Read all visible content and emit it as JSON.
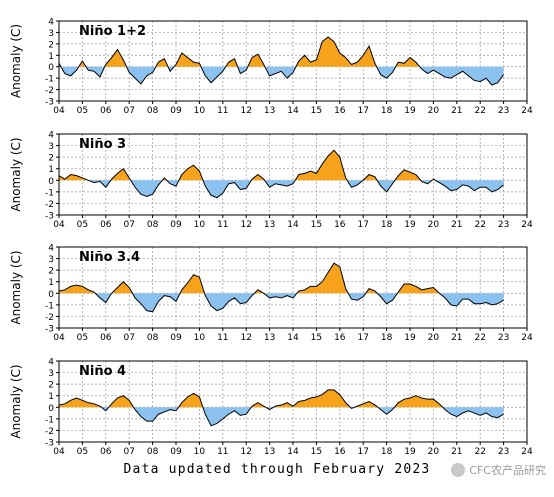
{
  "footer_text": "Data updated through February 2023",
  "watermark_text": "CFC农产品研究",
  "colors": {
    "positive": "#f7a21b",
    "negative": "#8cc2f0",
    "line": "#000000",
    "grid": "#9a9a9a"
  },
  "chart_data": [
    {
      "type": "area",
      "title": "Niño 1+2",
      "ylabel": "Anomaly (C)",
      "ylim": [
        -3,
        4
      ],
      "xlim": [
        2004,
        2024
      ],
      "yticks": [
        -3,
        -2,
        -1,
        0,
        1,
        2,
        3,
        4
      ],
      "xtick_labels": [
        "04",
        "05",
        "06",
        "07",
        "08",
        "09",
        "10",
        "11",
        "12",
        "13",
        "14",
        "15",
        "16",
        "17",
        "18",
        "19",
        "20",
        "21",
        "22",
        "23",
        "24"
      ],
      "grid": true,
      "series": [
        {
          "x": [
            2004.0,
            2004.25,
            2004.5,
            2004.75,
            2005.0,
            2005.25,
            2005.5,
            2005.75,
            2006.0,
            2006.25,
            2006.5,
            2006.75,
            2007.0,
            2007.25,
            2007.5,
            2007.75,
            2008.0,
            2008.25,
            2008.5,
            2008.75,
            2009.0,
            2009.25,
            2009.5,
            2009.75,
            2010.0,
            2010.25,
            2010.5,
            2010.75,
            2011.0,
            2011.25,
            2011.5,
            2011.75,
            2012.0,
            2012.25,
            2012.5,
            2012.75,
            2013.0,
            2013.25,
            2013.5,
            2013.75,
            2014.0,
            2014.25,
            2014.5,
            2014.75,
            2015.0,
            2015.25,
            2015.5,
            2015.75,
            2016.0,
            2016.25,
            2016.5,
            2016.75,
            2017.0,
            2017.25,
            2017.5,
            2017.75,
            2018.0,
            2018.25,
            2018.5,
            2018.75,
            2019.0,
            2019.25,
            2019.5,
            2019.75,
            2020.0,
            2020.25,
            2020.5,
            2020.75,
            2021.0,
            2021.25,
            2021.5,
            2021.75,
            2022.0,
            2022.25,
            2022.5,
            2022.75,
            2023.0
          ],
          "values": [
            0.3,
            -0.6,
            -0.8,
            -0.3,
            0.5,
            -0.3,
            -0.4,
            -0.9,
            0.2,
            0.8,
            1.5,
            0.6,
            -0.5,
            -1.0,
            -1.5,
            -0.8,
            -0.5,
            0.4,
            0.7,
            -0.4,
            0.2,
            1.2,
            0.8,
            0.4,
            0.3,
            -0.8,
            -1.4,
            -0.9,
            -0.4,
            0.4,
            0.7,
            -0.6,
            -0.3,
            0.8,
            1.1,
            0.2,
            -0.8,
            -0.6,
            -0.4,
            -1.0,
            -0.5,
            0.5,
            1.0,
            0.4,
            0.6,
            2.2,
            2.6,
            2.2,
            1.2,
            0.8,
            0.2,
            0.4,
            1.0,
            1.8,
            0.3,
            -0.7,
            -1.0,
            -0.5,
            0.4,
            0.3,
            0.8,
            0.4,
            -0.2,
            -0.6,
            -0.3,
            -0.6,
            -0.9,
            -1.0,
            -0.7,
            -0.4,
            -0.8,
            -1.2,
            -1.3,
            -1.0,
            -1.6,
            -1.4,
            -0.7
          ]
        }
      ]
    },
    {
      "type": "area",
      "title": "Niño 3",
      "ylabel": "Anomaly (C)",
      "ylim": [
        -3,
        4
      ],
      "xlim": [
        2004,
        2024
      ],
      "yticks": [
        -3,
        -2,
        -1,
        0,
        1,
        2,
        3,
        4
      ],
      "xtick_labels": [
        "04",
        "05",
        "06",
        "07",
        "08",
        "09",
        "10",
        "11",
        "12",
        "13",
        "14",
        "15",
        "16",
        "17",
        "18",
        "19",
        "20",
        "21",
        "22",
        "23",
        "24"
      ],
      "grid": true,
      "series": [
        {
          "x": [
            2004.0,
            2004.25,
            2004.5,
            2004.75,
            2005.0,
            2005.25,
            2005.5,
            2005.75,
            2006.0,
            2006.25,
            2006.5,
            2006.75,
            2007.0,
            2007.25,
            2007.5,
            2007.75,
            2008.0,
            2008.25,
            2008.5,
            2008.75,
            2009.0,
            2009.25,
            2009.5,
            2009.75,
            2010.0,
            2010.25,
            2010.5,
            2010.75,
            2011.0,
            2011.25,
            2011.5,
            2011.75,
            2012.0,
            2012.25,
            2012.5,
            2012.75,
            2013.0,
            2013.25,
            2013.5,
            2013.75,
            2014.0,
            2014.25,
            2014.5,
            2014.75,
            2015.0,
            2015.25,
            2015.5,
            2015.75,
            2016.0,
            2016.25,
            2016.5,
            2016.75,
            2017.0,
            2017.25,
            2017.5,
            2017.75,
            2018.0,
            2018.25,
            2018.5,
            2018.75,
            2019.0,
            2019.25,
            2019.5,
            2019.75,
            2020.0,
            2020.25,
            2020.5,
            2020.75,
            2021.0,
            2021.25,
            2021.5,
            2021.75,
            2022.0,
            2022.25,
            2022.5,
            2022.75,
            2023.0
          ],
          "values": [
            0.4,
            0.1,
            0.5,
            0.4,
            0.2,
            0.0,
            -0.2,
            -0.1,
            -0.6,
            0.1,
            0.6,
            1.0,
            0.2,
            -0.6,
            -1.2,
            -1.4,
            -1.2,
            -0.4,
            0.2,
            -0.3,
            -0.5,
            0.5,
            1.0,
            1.3,
            0.8,
            -0.5,
            -1.3,
            -1.5,
            -1.1,
            -0.3,
            -0.2,
            -0.8,
            -0.7,
            0.1,
            0.5,
            0.1,
            -0.6,
            -0.3,
            -0.4,
            -0.5,
            -0.3,
            0.5,
            0.6,
            0.8,
            0.6,
            1.4,
            2.1,
            2.6,
            2.0,
            0.2,
            -0.6,
            -0.4,
            0.0,
            0.5,
            0.3,
            -0.5,
            -1.0,
            -0.3,
            0.4,
            0.9,
            0.7,
            0.5,
            -0.1,
            -0.3,
            0.1,
            -0.2,
            -0.5,
            -0.9,
            -0.8,
            -0.4,
            -0.5,
            -0.9,
            -0.6,
            -0.6,
            -1.0,
            -0.8,
            -0.4
          ]
        }
      ]
    },
    {
      "type": "area",
      "title": "Niño 3.4",
      "ylabel": "Anomaly (C)",
      "ylim": [
        -3,
        4
      ],
      "xlim": [
        2004,
        2024
      ],
      "yticks": [
        -3,
        -2,
        -1,
        0,
        1,
        2,
        3,
        4
      ],
      "xtick_labels": [
        "04",
        "05",
        "06",
        "07",
        "08",
        "09",
        "10",
        "11",
        "12",
        "13",
        "14",
        "15",
        "16",
        "17",
        "18",
        "19",
        "20",
        "21",
        "22",
        "23",
        "24"
      ],
      "grid": true,
      "series": [
        {
          "x": [
            2004.0,
            2004.25,
            2004.5,
            2004.75,
            2005.0,
            2005.25,
            2005.5,
            2005.75,
            2006.0,
            2006.25,
            2006.5,
            2006.75,
            2007.0,
            2007.25,
            2007.5,
            2007.75,
            2008.0,
            2008.25,
            2008.5,
            2008.75,
            2009.0,
            2009.25,
            2009.5,
            2009.75,
            2010.0,
            2010.25,
            2010.5,
            2010.75,
            2011.0,
            2011.25,
            2011.5,
            2011.75,
            2012.0,
            2012.25,
            2012.5,
            2012.75,
            2013.0,
            2013.25,
            2013.5,
            2013.75,
            2014.0,
            2014.25,
            2014.5,
            2014.75,
            2015.0,
            2015.25,
            2015.5,
            2015.75,
            2016.0,
            2016.25,
            2016.5,
            2016.75,
            2017.0,
            2017.25,
            2017.5,
            2017.75,
            2018.0,
            2018.25,
            2018.5,
            2018.75,
            2019.0,
            2019.25,
            2019.5,
            2019.75,
            2020.0,
            2020.25,
            2020.5,
            2020.75,
            2021.0,
            2021.25,
            2021.5,
            2021.75,
            2022.0,
            2022.25,
            2022.5,
            2022.75,
            2023.0
          ],
          "values": [
            0.2,
            0.3,
            0.6,
            0.7,
            0.6,
            0.3,
            0.1,
            -0.4,
            -0.8,
            0.0,
            0.5,
            1.0,
            0.5,
            -0.4,
            -0.9,
            -1.5,
            -1.6,
            -0.7,
            -0.2,
            -0.3,
            -0.7,
            0.3,
            0.9,
            1.6,
            1.4,
            -0.2,
            -1.1,
            -1.5,
            -1.3,
            -0.7,
            -0.4,
            -0.9,
            -0.8,
            -0.2,
            0.3,
            0.0,
            -0.4,
            -0.3,
            -0.4,
            -0.2,
            -0.4,
            0.2,
            0.3,
            0.6,
            0.6,
            1.0,
            1.8,
            2.6,
            2.3,
            0.4,
            -0.5,
            -0.6,
            -0.3,
            0.4,
            0.2,
            -0.3,
            -0.9,
            -0.6,
            0.1,
            0.8,
            0.8,
            0.6,
            0.3,
            0.4,
            0.5,
            0.0,
            -0.4,
            -1.0,
            -1.1,
            -0.5,
            -0.5,
            -0.9,
            -0.9,
            -0.8,
            -1.0,
            -0.9,
            -0.6
          ]
        }
      ]
    },
    {
      "type": "area",
      "title": "Niño 4",
      "ylabel": "Anomaly (C)",
      "ylim": [
        -3,
        4
      ],
      "xlim": [
        2004,
        2024
      ],
      "yticks": [
        -3,
        -2,
        -1,
        0,
        1,
        2,
        3,
        4
      ],
      "xtick_labels": [
        "04",
        "05",
        "06",
        "07",
        "08",
        "09",
        "10",
        "11",
        "12",
        "13",
        "14",
        "15",
        "16",
        "17",
        "18",
        "19",
        "20",
        "21",
        "22",
        "23",
        "24"
      ],
      "grid": true,
      "series": [
        {
          "x": [
            2004.0,
            2004.25,
            2004.5,
            2004.75,
            2005.0,
            2005.25,
            2005.5,
            2005.75,
            2006.0,
            2006.25,
            2006.5,
            2006.75,
            2007.0,
            2007.25,
            2007.5,
            2007.75,
            2008.0,
            2008.25,
            2008.5,
            2008.75,
            2009.0,
            2009.25,
            2009.5,
            2009.75,
            2010.0,
            2010.25,
            2010.5,
            2010.75,
            2011.0,
            2011.25,
            2011.5,
            2011.75,
            2012.0,
            2012.25,
            2012.5,
            2012.75,
            2013.0,
            2013.25,
            2013.5,
            2013.75,
            2014.0,
            2014.25,
            2014.5,
            2014.75,
            2015.0,
            2015.25,
            2015.5,
            2015.75,
            2016.0,
            2016.25,
            2016.5,
            2016.75,
            2017.0,
            2017.25,
            2017.5,
            2017.75,
            2018.0,
            2018.25,
            2018.5,
            2018.75,
            2019.0,
            2019.25,
            2019.5,
            2019.75,
            2020.0,
            2020.25,
            2020.5,
            2020.75,
            2021.0,
            2021.25,
            2021.5,
            2021.75,
            2022.0,
            2022.25,
            2022.5,
            2022.75,
            2023.0
          ],
          "values": [
            0.2,
            0.3,
            0.6,
            0.8,
            0.6,
            0.4,
            0.3,
            0.1,
            -0.3,
            0.3,
            0.8,
            1.0,
            0.6,
            -0.2,
            -0.8,
            -1.2,
            -1.2,
            -0.6,
            -0.4,
            -0.2,
            -0.3,
            0.4,
            0.9,
            1.2,
            0.9,
            -0.6,
            -1.6,
            -1.4,
            -1.0,
            -0.6,
            -0.3,
            -0.7,
            -0.6,
            0.1,
            0.4,
            0.1,
            -0.2,
            0.1,
            0.2,
            0.4,
            0.1,
            0.5,
            0.6,
            0.8,
            0.9,
            1.1,
            1.5,
            1.5,
            1.1,
            0.4,
            -0.1,
            0.1,
            0.3,
            0.5,
            0.2,
            -0.2,
            -0.6,
            -0.2,
            0.4,
            0.7,
            0.8,
            1.0,
            0.8,
            0.7,
            0.7,
            0.3,
            -0.2,
            -0.6,
            -0.8,
            -0.5,
            -0.3,
            -0.5,
            -0.7,
            -0.5,
            -0.8,
            -0.9,
            -0.6
          ]
        }
      ]
    }
  ]
}
